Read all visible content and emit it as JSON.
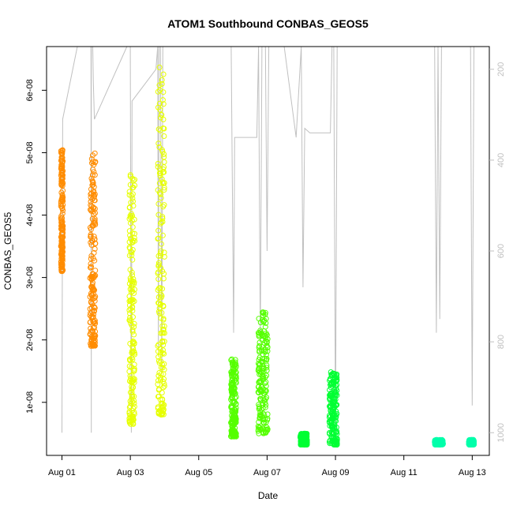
{
  "chart_data": {
    "type": "scatter",
    "title": "ATOM1 Southbound CONBAS_GEOS5",
    "xlabel": "Date",
    "ylabel": "CONBAS_GEOS5",
    "x_unit": "days since Aug 01 00:00",
    "xlim": [
      -0.45,
      12.5
    ],
    "ylim": [
      1.5e-09,
      6.7e-08
    ],
    "x_ticks": [
      {
        "value": 0,
        "label": "Aug 01"
      },
      {
        "value": 2,
        "label": "Aug 03"
      },
      {
        "value": 4,
        "label": "Aug 05"
      },
      {
        "value": 6,
        "label": "Aug 07"
      },
      {
        "value": 8,
        "label": "Aug 09"
      },
      {
        "value": 10,
        "label": "Aug 11"
      },
      {
        "value": 12,
        "label": "Aug 13"
      }
    ],
    "y_ticks": [
      {
        "value": 1e-08,
        "label": "1e-08"
      },
      {
        "value": 2e-08,
        "label": "2e-08"
      },
      {
        "value": 3e-08,
        "label": "3e-08"
      },
      {
        "value": 4e-08,
        "label": "4e-08"
      },
      {
        "value": 5e-08,
        "label": "5e-08"
      },
      {
        "value": 6e-08,
        "label": "6e-08"
      }
    ],
    "right_axis": {
      "description": "pressure (inverted, grey)",
      "range_top": 150,
      "range_bottom": 1050,
      "ticks": [
        {
          "value": 200,
          "label": "200"
        },
        {
          "value": 400,
          "label": "400"
        },
        {
          "value": 600,
          "label": "600"
        },
        {
          "value": 800,
          "label": "800"
        },
        {
          "value": 1000,
          "label": "1000"
        }
      ],
      "color": "#c0c0c0"
    },
    "series": [
      {
        "color": "#ff8c00",
        "x_range": [
          -0.03,
          0.03
        ],
        "y_range": [
          3.1e-08,
          5.05e-08
        ]
      },
      {
        "color": "#ff8c00",
        "x_range": [
          0.82,
          0.98
        ],
        "y_range": [
          1.9e-08,
          5e-08
        ]
      },
      {
        "color": "#e6ff00",
        "x_range": [
          1.97,
          2.13
        ],
        "y_range": [
          6.5e-09,
          4.8e-08
        ]
      },
      {
        "color": "#e6ff00",
        "x_range": [
          2.8,
          3.0
        ],
        "y_range": [
          8e-09,
          6.4e-08
        ]
      },
      {
        "color": "#55ff00",
        "x_range": [
          4.94,
          5.1
        ],
        "y_range": [
          4.5e-09,
          1.7e-08
        ]
      },
      {
        "color": "#55ff00",
        "x_range": [
          5.74,
          6.02
        ],
        "y_range": [
          5e-09,
          2.45e-08
        ]
      },
      {
        "color": "#00ff33",
        "x_range": [
          6.97,
          7.17
        ],
        "y_range": [
          3.2e-09,
          5e-09
        ]
      },
      {
        "color": "#00ff33",
        "x_range": [
          7.82,
          8.05
        ],
        "y_range": [
          3.2e-09,
          1.5e-08
        ]
      },
      {
        "color": "#00ffaa",
        "x_range": [
          10.9,
          11.15
        ],
        "y_range": [
          3.2e-09,
          4e-09
        ]
      },
      {
        "color": "#00ffaa",
        "x_range": [
          11.9,
          12.05
        ],
        "y_range": [
          3.2e-09,
          4e-09
        ]
      }
    ],
    "pressure_trace": {
      "color": "#c0c0c0",
      "points": [
        [
          0.0,
          1000
        ],
        [
          0.02,
          310
        ],
        [
          0.45,
          150
        ],
        [
          0.85,
          150
        ],
        [
          0.86,
          1000
        ],
        [
          0.86,
          150
        ],
        [
          0.9,
          150
        ],
        [
          0.92,
          230
        ],
        [
          0.95,
          310
        ],
        [
          1.9,
          150
        ],
        [
          2.0,
          150
        ],
        [
          2.02,
          820
        ],
        [
          2.03,
          1000
        ],
        [
          2.05,
          270
        ],
        [
          2.75,
          200
        ],
        [
          2.8,
          150
        ],
        [
          2.82,
          820
        ],
        [
          2.84,
          150
        ],
        [
          2.88,
          150
        ],
        [
          2.92,
          870
        ],
        [
          2.95,
          150
        ],
        [
          3.3,
          150
        ],
        [
          4.95,
          150
        ],
        [
          5.02,
          780
        ],
        [
          5.05,
          350
        ],
        [
          5.4,
          350
        ],
        [
          5.7,
          350
        ],
        [
          5.75,
          150
        ],
        [
          5.8,
          800
        ],
        [
          5.85,
          150
        ],
        [
          5.95,
          150
        ],
        [
          6.0,
          600
        ],
        [
          6.05,
          150
        ],
        [
          6.5,
          150
        ],
        [
          6.85,
          350
        ],
        [
          7.0,
          150
        ],
        [
          7.05,
          680
        ],
        [
          7.1,
          330
        ],
        [
          7.25,
          340
        ],
        [
          7.85,
          340
        ],
        [
          7.9,
          150
        ],
        [
          7.95,
          150
        ],
        [
          8.0,
          1000
        ],
        [
          8.05,
          150
        ],
        [
          10.9,
          150
        ],
        [
          10.95,
          780
        ],
        [
          11.0,
          150
        ],
        [
          11.05,
          750
        ],
        [
          11.1,
          150
        ],
        [
          11.95,
          150
        ],
        [
          12.0,
          940
        ],
        [
          12.05,
          150
        ]
      ]
    }
  }
}
